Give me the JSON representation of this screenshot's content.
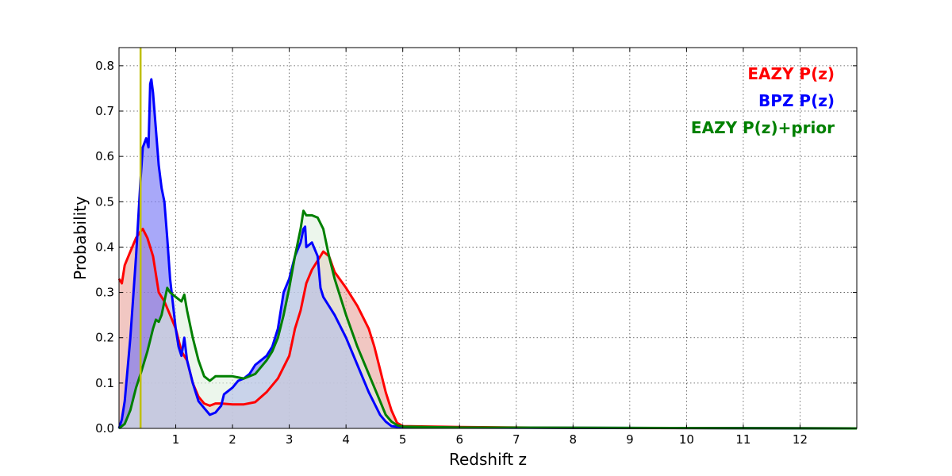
{
  "chart_data": {
    "type": "area",
    "title": "",
    "xlabel": "Redshift z",
    "ylabel": "Probability",
    "xlim": [
      0,
      13
    ],
    "ylim": [
      0,
      0.84
    ],
    "xticks": [
      1,
      2,
      3,
      4,
      5,
      6,
      7,
      8,
      9,
      10,
      11,
      12
    ],
    "yticks": [
      0.0,
      0.1,
      0.2,
      0.3,
      0.4,
      0.5,
      0.6,
      0.7,
      0.8
    ],
    "grid": true,
    "legend_position": "top-right",
    "vertical_line": {
      "x": 0.38,
      "color": "#bfbf00"
    },
    "series": [
      {
        "name": "EAZY P(z)",
        "color": "#ff0000",
        "fill": "#e8a29a",
        "points": [
          [
            0,
            0.33
          ],
          [
            0.05,
            0.32
          ],
          [
            0.1,
            0.36
          ],
          [
            0.2,
            0.39
          ],
          [
            0.3,
            0.42
          ],
          [
            0.38,
            0.435
          ],
          [
            0.42,
            0.44
          ],
          [
            0.5,
            0.42
          ],
          [
            0.6,
            0.38
          ],
          [
            0.65,
            0.34
          ],
          [
            0.7,
            0.3
          ],
          [
            0.8,
            0.28
          ],
          [
            0.9,
            0.25
          ],
          [
            1.0,
            0.22
          ],
          [
            1.1,
            0.17
          ],
          [
            1.2,
            0.15
          ],
          [
            1.3,
            0.1
          ],
          [
            1.4,
            0.07
          ],
          [
            1.5,
            0.055
          ],
          [
            1.6,
            0.05
          ],
          [
            1.7,
            0.055
          ],
          [
            1.8,
            0.055
          ],
          [
            2.0,
            0.053
          ],
          [
            2.2,
            0.053
          ],
          [
            2.4,
            0.058
          ],
          [
            2.6,
            0.08
          ],
          [
            2.8,
            0.11
          ],
          [
            3.0,
            0.16
          ],
          [
            3.1,
            0.22
          ],
          [
            3.2,
            0.26
          ],
          [
            3.3,
            0.32
          ],
          [
            3.4,
            0.35
          ],
          [
            3.5,
            0.37
          ],
          [
            3.6,
            0.39
          ],
          [
            3.7,
            0.38
          ],
          [
            3.8,
            0.345
          ],
          [
            4.0,
            0.31
          ],
          [
            4.2,
            0.27
          ],
          [
            4.4,
            0.22
          ],
          [
            4.5,
            0.18
          ],
          [
            4.6,
            0.13
          ],
          [
            4.7,
            0.08
          ],
          [
            4.8,
            0.04
          ],
          [
            4.9,
            0.012
          ],
          [
            5.0,
            0.005
          ],
          [
            6.0,
            0.003
          ],
          [
            8.0,
            0.001
          ],
          [
            13.0,
            0.0
          ]
        ]
      },
      {
        "name": "BPZ P(z)",
        "color": "#0000ff",
        "fill": "#6e6ef5",
        "points": [
          [
            0,
            0.0
          ],
          [
            0.05,
            0.02
          ],
          [
            0.1,
            0.06
          ],
          [
            0.2,
            0.2
          ],
          [
            0.3,
            0.38
          ],
          [
            0.38,
            0.55
          ],
          [
            0.42,
            0.62
          ],
          [
            0.48,
            0.64
          ],
          [
            0.52,
            0.62
          ],
          [
            0.55,
            0.76
          ],
          [
            0.57,
            0.77
          ],
          [
            0.6,
            0.74
          ],
          [
            0.65,
            0.66
          ],
          [
            0.7,
            0.58
          ],
          [
            0.75,
            0.53
          ],
          [
            0.8,
            0.5
          ],
          [
            0.85,
            0.42
          ],
          [
            0.9,
            0.33
          ],
          [
            1.0,
            0.22
          ],
          [
            1.05,
            0.18
          ],
          [
            1.1,
            0.16
          ],
          [
            1.15,
            0.2
          ],
          [
            1.2,
            0.15
          ],
          [
            1.3,
            0.1
          ],
          [
            1.4,
            0.06
          ],
          [
            1.5,
            0.045
          ],
          [
            1.6,
            0.03
          ],
          [
            1.7,
            0.035
          ],
          [
            1.8,
            0.05
          ],
          [
            1.85,
            0.075
          ],
          [
            2.0,
            0.09
          ],
          [
            2.1,
            0.105
          ],
          [
            2.2,
            0.11
          ],
          [
            2.3,
            0.12
          ],
          [
            2.4,
            0.14
          ],
          [
            2.5,
            0.15
          ],
          [
            2.6,
            0.16
          ],
          [
            2.7,
            0.18
          ],
          [
            2.8,
            0.22
          ],
          [
            2.9,
            0.3
          ],
          [
            3.0,
            0.33
          ],
          [
            3.1,
            0.38
          ],
          [
            3.2,
            0.41
          ],
          [
            3.25,
            0.44
          ],
          [
            3.28,
            0.445
          ],
          [
            3.3,
            0.4
          ],
          [
            3.4,
            0.41
          ],
          [
            3.5,
            0.38
          ],
          [
            3.55,
            0.31
          ],
          [
            3.6,
            0.29
          ],
          [
            3.8,
            0.25
          ],
          [
            4.0,
            0.2
          ],
          [
            4.2,
            0.14
          ],
          [
            4.4,
            0.08
          ],
          [
            4.6,
            0.03
          ],
          [
            4.7,
            0.015
          ],
          [
            4.8,
            0.005
          ],
          [
            5.0,
            0.002
          ],
          [
            13.0,
            0.0
          ]
        ]
      },
      {
        "name": "EAZY P(z)+prior",
        "color": "#008000",
        "fill": "#dff0df",
        "points": [
          [
            0,
            0.0
          ],
          [
            0.1,
            0.01
          ],
          [
            0.2,
            0.04
          ],
          [
            0.3,
            0.09
          ],
          [
            0.38,
            0.12
          ],
          [
            0.5,
            0.17
          ],
          [
            0.6,
            0.22
          ],
          [
            0.65,
            0.24
          ],
          [
            0.7,
            0.235
          ],
          [
            0.75,
            0.25
          ],
          [
            0.8,
            0.28
          ],
          [
            0.85,
            0.31
          ],
          [
            0.9,
            0.3
          ],
          [
            1.0,
            0.29
          ],
          [
            1.1,
            0.28
          ],
          [
            1.15,
            0.295
          ],
          [
            1.2,
            0.26
          ],
          [
            1.3,
            0.2
          ],
          [
            1.4,
            0.15
          ],
          [
            1.5,
            0.115
          ],
          [
            1.6,
            0.105
          ],
          [
            1.7,
            0.115
          ],
          [
            1.8,
            0.115
          ],
          [
            2.0,
            0.115
          ],
          [
            2.2,
            0.11
          ],
          [
            2.4,
            0.12
          ],
          [
            2.6,
            0.15
          ],
          [
            2.7,
            0.17
          ],
          [
            2.8,
            0.2
          ],
          [
            2.9,
            0.25
          ],
          [
            3.0,
            0.31
          ],
          [
            3.1,
            0.38
          ],
          [
            3.2,
            0.44
          ],
          [
            3.25,
            0.48
          ],
          [
            3.3,
            0.47
          ],
          [
            3.4,
            0.47
          ],
          [
            3.5,
            0.465
          ],
          [
            3.6,
            0.44
          ],
          [
            3.7,
            0.38
          ],
          [
            3.8,
            0.33
          ],
          [
            4.0,
            0.25
          ],
          [
            4.2,
            0.18
          ],
          [
            4.4,
            0.12
          ],
          [
            4.6,
            0.06
          ],
          [
            4.7,
            0.03
          ],
          [
            4.8,
            0.015
          ],
          [
            4.9,
            0.007
          ],
          [
            5.0,
            0.004
          ],
          [
            6.0,
            0.002
          ],
          [
            13.0,
            0.0
          ]
        ]
      }
    ]
  }
}
